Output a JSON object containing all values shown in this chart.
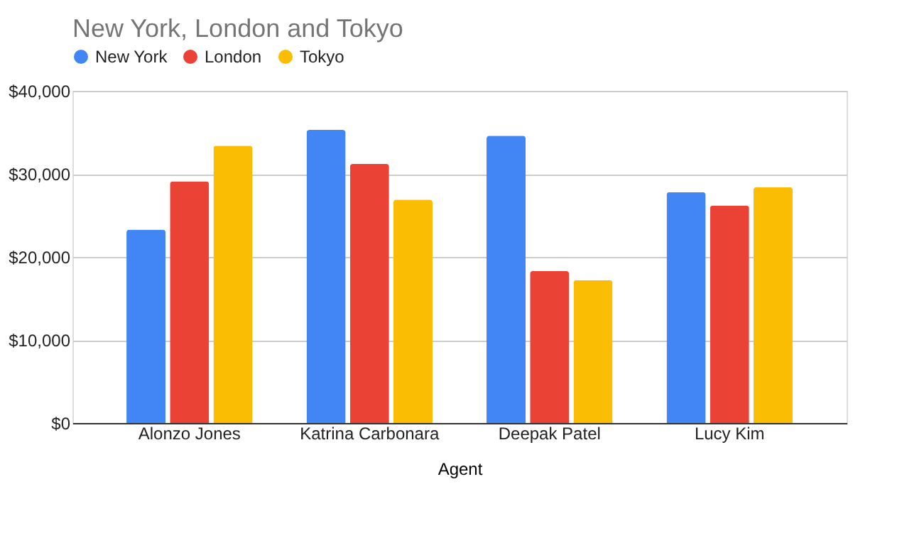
{
  "chart_data": {
    "type": "bar",
    "title": "New York, London and Tokyo",
    "xlabel": "Agent",
    "categories": [
      "Alonzo Jones",
      "Katrina Carbonara",
      "Deepak Patel",
      "Lucy Kim"
    ],
    "series": [
      {
        "name": "New York",
        "color": "#4285f4",
        "values": [
          23300,
          35300,
          34600,
          27800
        ]
      },
      {
        "name": "London",
        "color": "#ea4335",
        "values": [
          29100,
          31200,
          18300,
          26200
        ]
      },
      {
        "name": "Tokyo",
        "color": "#fbbc04",
        "values": [
          33400,
          26900,
          17200,
          28400
        ]
      }
    ],
    "ylim": [
      0,
      40000
    ],
    "yticks": [
      {
        "value": 0,
        "label": "$0"
      },
      {
        "value": 10000,
        "label": "$10,000"
      },
      {
        "value": 20000,
        "label": "$20,000"
      },
      {
        "value": 30000,
        "label": "$30,000"
      },
      {
        "value": 40000,
        "label": "$40,000"
      }
    ],
    "grid": "y",
    "legend": "top"
  }
}
